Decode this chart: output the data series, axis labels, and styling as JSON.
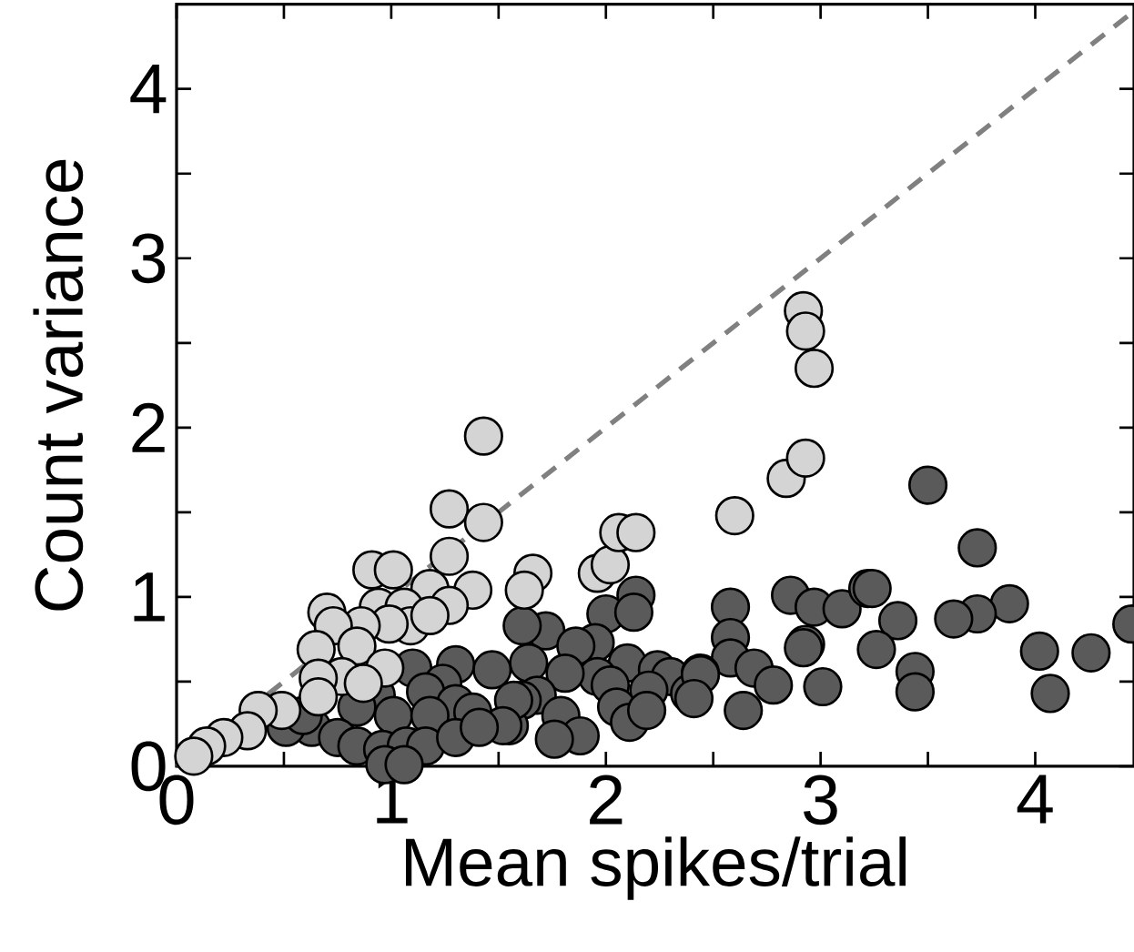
{
  "chart_data": {
    "type": "scatter",
    "xlabel": "Mean spikes/trial",
    "ylabel": "Count variance",
    "xlim": [
      0,
      4.46
    ],
    "ylim": [
      0,
      4.5
    ],
    "xticks": [
      0,
      {
        "value": 0.5,
        "label": null
      },
      1,
      {
        "value": 1.5,
        "label": null
      },
      2,
      {
        "value": 2.5,
        "label": null
      },
      3,
      {
        "value": 3.5,
        "label": null
      },
      4
    ],
    "yticks": [
      0,
      {
        "value": 0.5,
        "label": null
      },
      1,
      {
        "value": 1.5,
        "label": null
      },
      2,
      {
        "value": 2.5,
        "label": null
      },
      3,
      {
        "value": 3.5,
        "label": null
      },
      4
    ],
    "grid": false,
    "series": [
      {
        "type": "line",
        "color": "#808080",
        "line_style": "dashed",
        "marker": "none",
        "x": [
          0,
          4.46
        ],
        "values": [
          0,
          4.46
        ]
      },
      {
        "color": "#5a5a5a",
        "marker": "circle",
        "x": [
          2.58,
          2.86,
          2.97,
          3.1,
          3.22,
          2.58,
          2.58,
          2.69,
          2.78,
          2.93,
          3.01,
          2.64,
          2.14,
          2.0,
          2.13,
          1.72,
          1.61,
          1.64,
          1.95,
          1.86,
          2.1,
          1.96,
          1.81,
          2.02,
          2.24,
          2.3,
          2.44,
          2.2,
          2.39,
          1.68,
          1.79,
          1.61,
          2.05,
          2.11,
          1.88,
          1.76,
          2.19,
          1.55,
          3.5,
          3.73,
          3.24,
          3.88,
          3.73,
          3.62,
          3.36,
          2.92,
          3.26,
          4.02,
          4.26,
          4.45,
          4.07,
          3.44,
          3.44,
          2.44,
          2.41,
          1.1,
          1.3,
          1.47,
          1.24,
          1.16,
          1.3,
          1.38,
          0.93,
          0.84,
          1.01,
          1.18,
          1.57,
          1.52,
          0.63,
          0.51,
          0.75,
          0.84,
          0.96,
          1.07,
          1.16,
          1.3,
          1.41,
          0.97,
          1.06,
          0.59
        ],
        "values": [
          0.94,
          1.01,
          0.94,
          0.93,
          1.05,
          0.76,
          0.64,
          0.58,
          0.48,
          0.72,
          0.47,
          0.33,
          1.01,
          0.9,
          0.91,
          0.8,
          0.83,
          0.61,
          0.73,
          0.71,
          0.61,
          0.53,
          0.55,
          0.48,
          0.57,
          0.53,
          0.55,
          0.45,
          0.43,
          0.42,
          0.3,
          0.39,
          0.35,
          0.26,
          0.18,
          0.16,
          0.33,
          0.24,
          1.66,
          1.29,
          1.05,
          0.96,
          0.9,
          0.87,
          0.86,
          0.7,
          0.69,
          0.68,
          0.67,
          0.84,
          0.43,
          0.56,
          0.44,
          0.54,
          0.4,
          0.58,
          0.6,
          0.57,
          0.49,
          0.44,
          0.37,
          0.32,
          0.42,
          0.35,
          0.3,
          0.3,
          0.39,
          0.24,
          0.23,
          0.23,
          0.17,
          0.12,
          0.1,
          0.12,
          0.12,
          0.17,
          0.23,
          0.01,
          0.01,
          0.3
        ]
      },
      {
        "color": "#d4d4d4",
        "marker": "circle",
        "x": [
          1.43,
          1.27,
          1.43,
          1.27,
          0.91,
          1.01,
          1.18,
          1.38,
          1.27,
          0.94,
          1.06,
          0.7,
          1.09,
          0.99,
          0.86,
          0.73,
          1.18,
          0.84,
          0.65,
          0.97,
          0.77,
          0.66,
          0.87,
          0.66,
          0.49,
          0.38,
          0.33,
          0.22,
          0.14,
          0.08,
          1.66,
          1.62,
          1.96,
          2.02,
          2.06,
          2.14,
          2.6,
          2.84,
          2.93,
          2.92,
          2.93,
          2.97
        ],
        "values": [
          1.95,
          1.52,
          1.44,
          1.24,
          1.16,
          1.16,
          1.05,
          1.04,
          0.95,
          0.94,
          0.94,
          0.91,
          0.83,
          0.84,
          0.83,
          0.83,
          0.89,
          0.71,
          0.69,
          0.58,
          0.53,
          0.52,
          0.49,
          0.41,
          0.33,
          0.33,
          0.21,
          0.17,
          0.12,
          0.06,
          1.14,
          1.04,
          1.14,
          1.19,
          1.38,
          1.38,
          1.48,
          1.7,
          1.82,
          2.69,
          2.57,
          2.35
        ]
      }
    ]
  }
}
